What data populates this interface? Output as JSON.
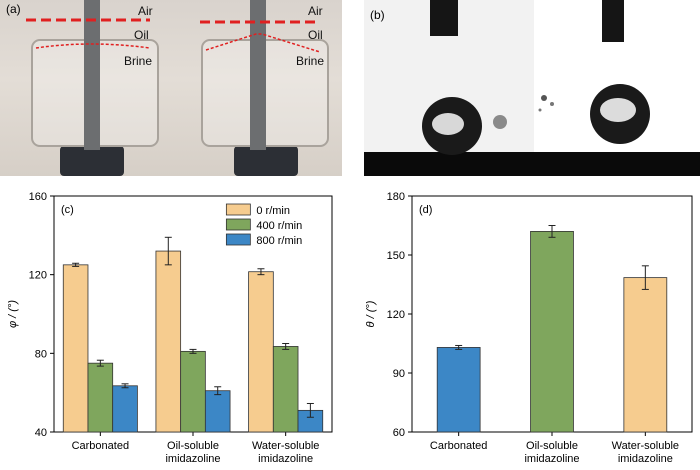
{
  "panels": {
    "a": {
      "label": "(a)",
      "annotations": [
        {
          "text": "Air"
        },
        {
          "text": "Oil"
        },
        {
          "text": "Brine"
        },
        {
          "text": "Air"
        },
        {
          "text": "Oil"
        },
        {
          "text": "Brine"
        }
      ]
    },
    "b": {
      "label": "(b)"
    }
  },
  "chart_data": [
    {
      "type": "bar",
      "panel_label": "(c)",
      "categories": [
        "Carbonated",
        "Oil-soluble imidazoline",
        "Water-soluble imidazoline"
      ],
      "category_lines": [
        [
          "Carbonated"
        ],
        [
          "Oil-soluble",
          "imidazoline"
        ],
        [
          "Water-soluble",
          "imidazoline"
        ]
      ],
      "series": [
        {
          "name": "0 r/min",
          "color": "#f6cc8f",
          "values": [
            125,
            132,
            121.5
          ],
          "errors": [
            0.8,
            7,
            1.5
          ]
        },
        {
          "name": "400 r/min",
          "color": "#7fa65d",
          "values": [
            75,
            81,
            83.5
          ],
          "errors": [
            1.5,
            1,
            1.5
          ]
        },
        {
          "name": "800 r/min",
          "color": "#3c87c6",
          "values": [
            63.5,
            61,
            51
          ],
          "errors": [
            1,
            2,
            3.5
          ]
        }
      ],
      "ylabel": "φ / (°)",
      "ylim": [
        40,
        160
      ],
      "yticks": [
        40,
        80,
        120,
        160
      ],
      "legend": "top-right"
    },
    {
      "type": "bar",
      "panel_label": "(d)",
      "categories": [
        "Carbonated",
        "Oil-soluble imidazoline",
        "Water-soluble imidazoline"
      ],
      "category_lines": [
        [
          "Carbonated"
        ],
        [
          "Oil-soluble",
          "imidazoline"
        ],
        [
          "Water-soluble",
          "imidazoline"
        ]
      ],
      "values": [
        103,
        162,
        138.5
      ],
      "errors": [
        1,
        3,
        6
      ],
      "colors": [
        "#3c87c6",
        "#7fa65d",
        "#f6cc8f"
      ],
      "ylabel": "θ / (°)",
      "ylim": [
        60,
        180
      ],
      "yticks": [
        60,
        90,
        120,
        150,
        180
      ]
    }
  ]
}
